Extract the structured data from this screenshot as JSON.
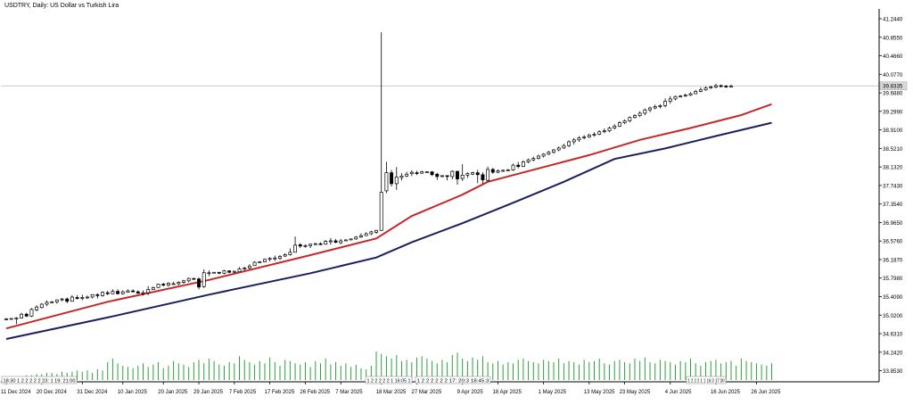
{
  "title": "USDTRY, Daily:  US Dollar vs Turkish Lira",
  "current_price_label": "39.8335",
  "colors": {
    "background": "#ffffff",
    "candle_up_fill": "#ffffff",
    "candle_down_fill": "#000000",
    "candle_outline": "#000000",
    "ma_fast": "#c62828",
    "ma_slow": "#1a1f5e",
    "volume": "#2e9e3e",
    "grid_price_line": "#c0c0c0",
    "axis": "#000000"
  },
  "chart_data": {
    "type": "candlestick",
    "title": "USDTRY, Daily:  US Dollar vs Turkish Lira",
    "ylim": [
      33.62,
      41.45
    ],
    "y_ticks": [
      "41.2440",
      "40.8550",
      "40.4660",
      "40.0770",
      "39.6880",
      "39.2990",
      "38.9100",
      "38.5210",
      "38.1320",
      "37.7430",
      "37.3540",
      "36.9650",
      "36.5760",
      "36.1870",
      "35.7980",
      "35.4090",
      "35.0200",
      "34.6310",
      "34.2420",
      "33.8530"
    ],
    "x_tick_labels": [
      "11 Dec 2024",
      "20 Dec 2024",
      "31 Dec 2024",
      "10 Jan 2025",
      "20 Jan 2025",
      "29 Jan 2025",
      "7 Feb 2025",
      "17 Feb 2025",
      "26 Feb 2025",
      "7 Mar 2025",
      "18 Mar 2025",
      "27 Mar 2025",
      "9 Apr 2025",
      "18 Apr 2025",
      "1 May 2025",
      "13 May 2025",
      "23 May 2025",
      "4 Jun 2025",
      "16 Jun 2025",
      "26 Jun 2025"
    ],
    "x_tick_index": [
      0,
      7,
      15,
      23,
      31,
      38,
      45,
      52,
      59,
      66,
      74,
      81,
      90,
      97,
      106,
      115,
      122,
      131,
      140,
      148
    ],
    "session_labels": {
      "left": "18:30 1 2 2 2 2 2 23: 1 19: 21:00",
      "mid1": "1 2 2 2 2 2 1 16:05 1",
      "mid2": "1 2 2 2 2 2 2 17: 20:3 18:45:3",
      "right": "1 2 2 2 1 1 16:3 17:30"
    },
    "current_price": 39.8335,
    "ma_fast": {
      "name": "",
      "points": [
        [
          0,
          34.74
        ],
        [
          20,
          35.3
        ],
        [
          40,
          35.76
        ],
        [
          60,
          36.28
        ],
        [
          73,
          36.63
        ],
        [
          80,
          37.1
        ],
        [
          90,
          37.55
        ],
        [
          95,
          37.82
        ],
        [
          105,
          38.1
        ],
        [
          115,
          38.38
        ],
        [
          125,
          38.7
        ],
        [
          135,
          38.95
        ],
        [
          145,
          39.22
        ],
        [
          151,
          39.45
        ]
      ]
    },
    "ma_slow": {
      "name": "",
      "points": [
        [
          0,
          34.52
        ],
        [
          20,
          34.97
        ],
        [
          40,
          35.45
        ],
        [
          60,
          35.9
        ],
        [
          73,
          36.23
        ],
        [
          80,
          36.55
        ],
        [
          90,
          36.95
        ],
        [
          100,
          37.38
        ],
        [
          110,
          37.82
        ],
        [
          120,
          38.3
        ],
        [
          130,
          38.52
        ],
        [
          140,
          38.78
        ],
        [
          151,
          39.06
        ]
      ]
    },
    "candles": [
      [
        34.92,
        34.94,
        34.92,
        34.96
      ],
      [
        34.93,
        34.95,
        34.93,
        34.96
      ],
      [
        34.95,
        34.96,
        34.83,
        34.98
      ],
      [
        34.96,
        35.04,
        34.95,
        35.07
      ],
      [
        35.04,
        35.0,
        34.98,
        35.07
      ],
      [
        35.0,
        35.14,
        34.98,
        35.17
      ],
      [
        35.13,
        35.19,
        35.1,
        35.23
      ],
      [
        35.18,
        35.25,
        35.16,
        35.27
      ],
      [
        35.25,
        35.29,
        35.21,
        35.33
      ],
      [
        35.28,
        35.3,
        35.27,
        35.32
      ],
      [
        35.3,
        35.34,
        35.26,
        35.35
      ],
      [
        35.34,
        35.36,
        35.31,
        35.38
      ],
      [
        35.36,
        35.31,
        35.27,
        35.39
      ],
      [
        35.31,
        35.4,
        35.31,
        35.44
      ],
      [
        35.39,
        35.37,
        35.35,
        35.44
      ],
      [
        35.37,
        35.39,
        35.33,
        35.45
      ],
      [
        35.39,
        35.4,
        35.36,
        35.43
      ],
      [
        35.4,
        35.45,
        35.37,
        35.46
      ],
      [
        35.45,
        35.43,
        35.37,
        35.48
      ],
      [
        35.43,
        35.5,
        35.41,
        35.52
      ],
      [
        35.49,
        35.47,
        35.44,
        35.53
      ],
      [
        35.47,
        35.52,
        35.46,
        35.56
      ],
      [
        35.52,
        35.47,
        35.45,
        35.56
      ],
      [
        35.47,
        35.51,
        35.45,
        35.54
      ],
      [
        35.5,
        35.53,
        35.5,
        35.56
      ],
      [
        35.53,
        35.51,
        35.5,
        35.56
      ],
      [
        35.51,
        35.48,
        35.47,
        35.54
      ],
      [
        35.48,
        35.49,
        35.43,
        35.54
      ],
      [
        35.49,
        35.56,
        35.44,
        35.63
      ],
      [
        35.56,
        35.6,
        35.55,
        35.62
      ],
      [
        35.6,
        35.67,
        35.6,
        35.68
      ],
      [
        35.67,
        35.65,
        35.62,
        35.7
      ],
      [
        35.65,
        35.69,
        35.62,
        35.71
      ],
      [
        35.68,
        35.68,
        35.68,
        35.72
      ],
      [
        35.68,
        35.71,
        35.65,
        35.73
      ],
      [
        35.71,
        35.74,
        35.68,
        35.76
      ],
      [
        35.74,
        35.79,
        35.71,
        35.81
      ],
      [
        35.79,
        35.78,
        35.77,
        35.8
      ],
      [
        35.78,
        35.61,
        35.56,
        35.81
      ],
      [
        35.62,
        35.91,
        35.59,
        35.98
      ],
      [
        35.91,
        35.91,
        35.84,
        35.96
      ],
      [
        35.91,
        35.92,
        35.9,
        35.92
      ],
      [
        35.92,
        35.9,
        35.88,
        35.92
      ],
      [
        35.9,
        35.95,
        35.88,
        35.97
      ],
      [
        35.95,
        35.92,
        35.9,
        35.96
      ],
      [
        35.92,
        35.94,
        35.91,
        35.96
      ],
      [
        35.93,
        35.99,
        35.93,
        36.03
      ],
      [
        35.99,
        36.01,
        35.96,
        36.04
      ],
      [
        36.01,
        36.05,
        35.99,
        36.09
      ],
      [
        36.06,
        36.13,
        36.06,
        36.15
      ],
      [
        36.13,
        36.14,
        36.11,
        36.15
      ],
      [
        36.14,
        36.19,
        36.13,
        36.21
      ],
      [
        36.19,
        36.21,
        36.15,
        36.24
      ],
      [
        36.22,
        36.22,
        36.16,
        36.27
      ],
      [
        36.21,
        36.25,
        36.18,
        36.28
      ],
      [
        36.26,
        36.29,
        36.24,
        36.32
      ],
      [
        36.29,
        36.34,
        36.27,
        36.42
      ],
      [
        36.34,
        36.49,
        36.34,
        36.67
      ],
      [
        36.5,
        36.47,
        36.43,
        36.53
      ],
      [
        36.47,
        36.48,
        36.44,
        36.51
      ],
      [
        36.48,
        36.51,
        36.43,
        36.52
      ],
      [
        36.51,
        36.52,
        36.51,
        36.54
      ],
      [
        36.52,
        36.51,
        36.49,
        36.55
      ],
      [
        36.51,
        36.57,
        36.5,
        36.6
      ],
      [
        36.57,
        36.58,
        36.5,
        36.64
      ],
      [
        36.58,
        36.55,
        36.53,
        36.62
      ],
      [
        36.54,
        36.58,
        36.51,
        36.62
      ],
      [
        36.58,
        36.6,
        36.57,
        36.61
      ],
      [
        36.6,
        36.62,
        36.59,
        36.63
      ],
      [
        36.62,
        36.66,
        36.6,
        36.68
      ],
      [
        36.66,
        36.69,
        36.64,
        36.74
      ],
      [
        36.69,
        36.73,
        36.68,
        36.76
      ],
      [
        36.73,
        36.77,
        36.7,
        36.79
      ],
      [
        36.76,
        36.8,
        36.73,
        36.81
      ],
      [
        36.8,
        37.6,
        36.79,
        40.96
      ],
      [
        37.63,
        38.01,
        37.58,
        38.24
      ],
      [
        38.01,
        37.78,
        37.72,
        38.07
      ],
      [
        37.78,
        37.92,
        37.65,
        38.13
      ],
      [
        37.91,
        37.94,
        37.85,
        38.0
      ],
      [
        37.94,
        37.98,
        37.92,
        38.03
      ],
      [
        37.99,
        38.02,
        37.94,
        38.06
      ],
      [
        38.01,
        38.0,
        37.96,
        38.05
      ],
      [
        38.0,
        38.03,
        37.99,
        38.05
      ],
      [
        38.03,
        38.03,
        38.01,
        38.04
      ],
      [
        38.03,
        37.97,
        37.94,
        38.04
      ],
      [
        37.98,
        37.93,
        37.86,
        38.01
      ],
      [
        37.93,
        37.95,
        37.91,
        37.95
      ],
      [
        37.95,
        37.93,
        37.85,
        37.95
      ],
      [
        37.93,
        38.04,
        37.87,
        38.06
      ],
      [
        38.04,
        37.88,
        37.76,
        38.05
      ],
      [
        37.89,
        37.96,
        37.84,
        38.19
      ],
      [
        37.96,
        37.99,
        37.9,
        38.02
      ],
      [
        37.98,
        38.01,
        37.96,
        38.03
      ],
      [
        38.01,
        37.97,
        37.79,
        38.07
      ],
      [
        37.97,
        37.86,
        37.78,
        38.02
      ],
      [
        37.85,
        38.08,
        37.82,
        38.14
      ],
      [
        38.08,
        38.02,
        37.99,
        38.11
      ],
      [
        38.02,
        38.05,
        38.0,
        38.08
      ],
      [
        38.05,
        38.06,
        38.03,
        38.08
      ],
      [
        38.06,
        38.07,
        38.04,
        38.09
      ],
      [
        38.07,
        38.17,
        38.05,
        38.2
      ],
      [
        38.17,
        38.14,
        38.1,
        38.24
      ],
      [
        38.14,
        38.24,
        38.13,
        38.27
      ],
      [
        38.24,
        38.28,
        38.21,
        38.31
      ],
      [
        38.28,
        38.31,
        38.25,
        38.35
      ],
      [
        38.31,
        38.36,
        38.29,
        38.39
      ],
      [
        38.36,
        38.4,
        38.33,
        38.42
      ],
      [
        38.4,
        38.44,
        38.38,
        38.47
      ],
      [
        38.44,
        38.49,
        38.41,
        38.51
      ],
      [
        38.49,
        38.53,
        38.46,
        38.56
      ],
      [
        38.53,
        38.58,
        38.51,
        38.62
      ],
      [
        38.58,
        38.66,
        38.55,
        38.69
      ],
      [
        38.66,
        38.7,
        38.6,
        38.74
      ],
      [
        38.7,
        38.74,
        38.66,
        38.78
      ],
      [
        38.74,
        38.76,
        38.71,
        38.8
      ],
      [
        38.76,
        38.8,
        38.74,
        38.83
      ],
      [
        38.8,
        38.82,
        38.77,
        38.86
      ],
      [
        38.82,
        38.87,
        38.8,
        38.9
      ],
      [
        38.87,
        38.89,
        38.84,
        38.94
      ],
      [
        38.89,
        38.95,
        38.86,
        38.98
      ],
      [
        38.95,
        38.99,
        38.92,
        39.03
      ],
      [
        38.99,
        39.06,
        38.97,
        39.09
      ],
      [
        39.06,
        39.1,
        39.03,
        39.13
      ],
      [
        39.1,
        39.17,
        39.07,
        39.19
      ],
      [
        39.17,
        39.21,
        39.15,
        39.24
      ],
      [
        39.21,
        39.26,
        39.18,
        39.3
      ],
      [
        39.26,
        39.33,
        39.22,
        39.36
      ],
      [
        39.33,
        39.37,
        39.28,
        39.4
      ],
      [
        39.37,
        39.4,
        39.34,
        39.44
      ],
      [
        39.4,
        39.42,
        39.36,
        39.45
      ],
      [
        39.42,
        39.51,
        39.38,
        39.57
      ],
      [
        39.51,
        39.56,
        39.46,
        39.62
      ],
      [
        39.56,
        39.61,
        39.53,
        39.63
      ],
      [
        39.61,
        39.62,
        39.59,
        39.64
      ],
      [
        39.62,
        39.64,
        39.6,
        39.67
      ],
      [
        39.64,
        39.67,
        39.62,
        39.7
      ],
      [
        39.67,
        39.72,
        39.66,
        39.75
      ],
      [
        39.72,
        39.75,
        39.7,
        39.8
      ],
      [
        39.75,
        39.79,
        39.73,
        39.82
      ],
      [
        39.79,
        39.81,
        39.77,
        39.84
      ],
      [
        39.81,
        39.84,
        39.78,
        39.88
      ],
      [
        39.84,
        39.83,
        39.8,
        39.86
      ],
      [
        39.83,
        39.82,
        39.79,
        39.85
      ],
      [
        39.82,
        39.83,
        39.8,
        39.86
      ]
    ],
    "volume": [
      2,
      3,
      2,
      3,
      4,
      4,
      5,
      5,
      6,
      6,
      5,
      7,
      6,
      7,
      8,
      7,
      8,
      6,
      9,
      8,
      15,
      18,
      14,
      12,
      11,
      10,
      12,
      14,
      11,
      13,
      15,
      10,
      12,
      16,
      14,
      13,
      11,
      15,
      17,
      14,
      18,
      16,
      13,
      12,
      15,
      14,
      20,
      17,
      15,
      13,
      16,
      14,
      19,
      15,
      12,
      17,
      16,
      14,
      13,
      15,
      11,
      16,
      14,
      18,
      13,
      15,
      12,
      14,
      11,
      13,
      10,
      9,
      12,
      24,
      22,
      20,
      18,
      21,
      16,
      17,
      15,
      19,
      20,
      18,
      16,
      14,
      17,
      15,
      21,
      23,
      18,
      16,
      19,
      17,
      20,
      15,
      14,
      16,
      13,
      15,
      14,
      17,
      18,
      16,
      15,
      14,
      17,
      16,
      15,
      18,
      14,
      16,
      15,
      13,
      17,
      15,
      16,
      18,
      14,
      13,
      16,
      17,
      15,
      14,
      18,
      16,
      19,
      15,
      14,
      17,
      16,
      15,
      13,
      16,
      15,
      18,
      14,
      12,
      15,
      16,
      17,
      14,
      15,
      16,
      12,
      18,
      16,
      15,
      14,
      13,
      12,
      14
    ],
    "volume_max": 30,
    "grid": false
  }
}
